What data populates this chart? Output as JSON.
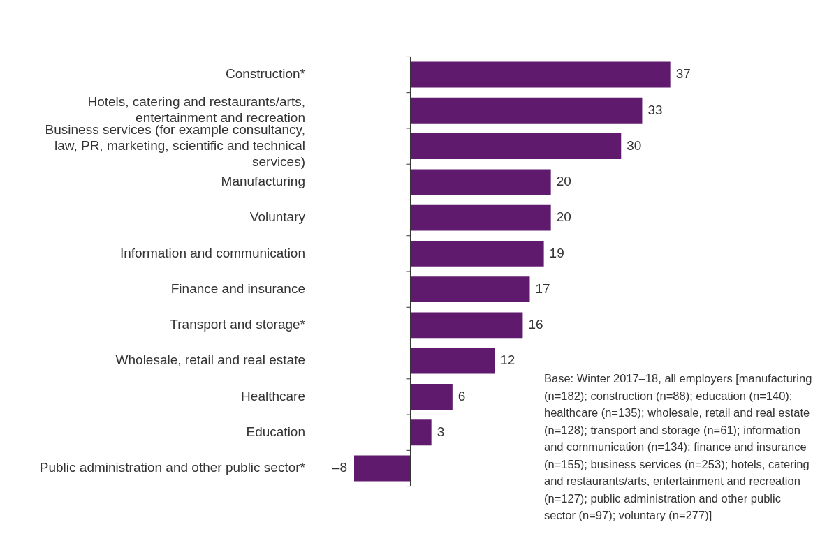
{
  "chart_data": {
    "type": "bar",
    "orientation": "horizontal",
    "tick_labels": "y",
    "categories": [
      "Construction*",
      "Hotels, catering and restaurants/arts, entertainment and recreation",
      "Business services (for example consultancy, law, PR, marketing, scientific and technical services)",
      "Manufacturing",
      "Voluntary",
      "Information and communication",
      "Finance and insurance",
      "Transport and storage*",
      "Wholesale, retail and real estate",
      "Healthcare",
      "Education",
      "Public administration and other public sector*"
    ],
    "values": [
      37,
      33,
      30,
      20,
      20,
      19,
      17,
      16,
      12,
      6,
      3,
      -8
    ],
    "value_labels": [
      "37",
      "33",
      "30",
      "20",
      "20",
      "19",
      "17",
      "16",
      "12",
      "6",
      "3",
      "–8"
    ],
    "color": "#5f1a6e",
    "annotations": [
      "Base: Winter 2017–18, all employers [manufacturing (n=182); construction (n=88); education (n=140); healthcare (n=135); wholesale, retail and real estate (n=128); transport and storage (n=61); information and communication (n=134); finance and insurance (n=155); business services (n=253); hotels, catering and restaurants/arts, entertainment and recreation (n=127); public administration and other public sector (n=97); voluntary (n=277)]"
    ]
  }
}
